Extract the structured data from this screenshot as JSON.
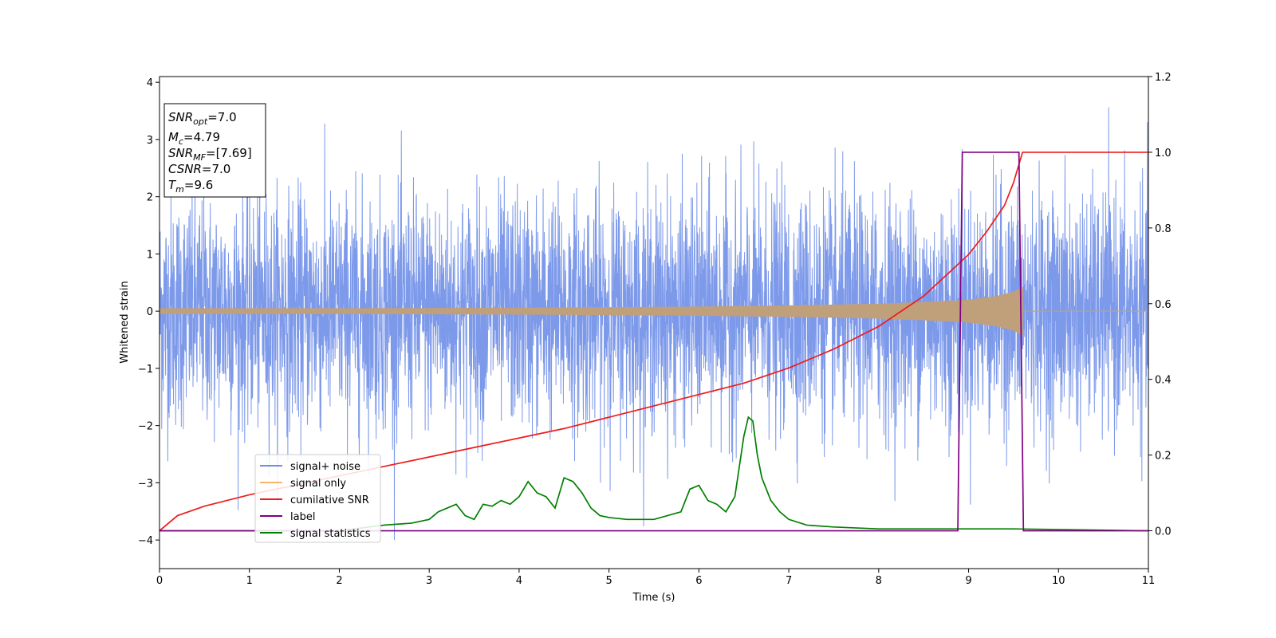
{
  "chart_data": {
    "type": "line",
    "xlabel": "Time (s)",
    "ylabel": "Whitened strain",
    "xlim": [
      0,
      11
    ],
    "ylim_left": [
      -4.5,
      4.1
    ],
    "ylim_right": [
      -0.1,
      1.2
    ],
    "x_ticks": [
      "0",
      "1",
      "2",
      "3",
      "4",
      "5",
      "6",
      "7",
      "8",
      "9",
      "10",
      "11"
    ],
    "y_ticks_left": [
      "4",
      "3",
      "2",
      "1",
      "0",
      "−1",
      "−2",
      "−3",
      "−4"
    ],
    "y_ticks_right": [
      "1.2",
      "1.0",
      "0.8",
      "0.6",
      "0.4",
      "0.2",
      "0.0"
    ],
    "grid": false,
    "legend_position": "lower-left",
    "info_box": {
      "snr_opt": "=7.0",
      "mc": "=4.79",
      "snr_mf": "=[7.69]",
      "csnr": "=7.0",
      "tm": "=9.6"
    },
    "series": [
      {
        "name": "signal+ noise",
        "axis": "left",
        "color": "#6f8ee8",
        "note_values": "Gaussian noise, std about 1, range -4.0 to 3.7"
      },
      {
        "name": "signal only",
        "axis": "left",
        "color": "#f5b66c",
        "envelope": {
          "x": [
            0,
            2,
            4,
            6,
            7,
            8,
            8.5,
            9,
            9.3,
            9.5,
            9.6
          ],
          "amp": [
            0.05,
            0.05,
            0.06,
            0.08,
            0.1,
            0.13,
            0.16,
            0.2,
            0.26,
            0.34,
            0.42
          ]
        }
      },
      {
        "name": "cumilative SNR",
        "axis": "right",
        "color": "#ee1c1c",
        "x": [
          0,
          0.2,
          0.5,
          1,
          1.5,
          2,
          2.5,
          3,
          3.5,
          4,
          4.5,
          5,
          5.5,
          6,
          6.5,
          7,
          7.5,
          8,
          8.5,
          9,
          9.2,
          9.4,
          9.5,
          9.6,
          11
        ],
        "values": [
          0.0,
          0.04,
          0.065,
          0.095,
          0.12,
          0.145,
          0.17,
          0.195,
          0.22,
          0.245,
          0.27,
          0.3,
          0.33,
          0.36,
          0.39,
          0.43,
          0.48,
          0.54,
          0.62,
          0.73,
          0.79,
          0.86,
          0.92,
          1.0,
          1.0
        ]
      },
      {
        "name": "label",
        "axis": "right",
        "color": "#800080",
        "x": [
          0,
          8.88,
          8.93,
          9.56,
          9.61,
          11
        ],
        "values": [
          0,
          0,
          1,
          1,
          0,
          0
        ]
      },
      {
        "name": "signal statistics",
        "axis": "right",
        "color": "#008000",
        "x": [
          0,
          2,
          2.5,
          2.8,
          3,
          3.1,
          3.2,
          3.3,
          3.4,
          3.5,
          3.6,
          3.7,
          3.8,
          3.9,
          4.0,
          4.1,
          4.2,
          4.3,
          4.4,
          4.5,
          4.6,
          4.7,
          4.8,
          4.9,
          5.0,
          5.2,
          5.5,
          5.8,
          5.9,
          6.0,
          6.1,
          6.2,
          6.3,
          6.4,
          6.5,
          6.55,
          6.6,
          6.65,
          6.7,
          6.8,
          6.9,
          7.0,
          7.2,
          7.5,
          8.0,
          9.0,
          9.5,
          11
        ],
        "values": [
          0.0,
          0.0,
          0.015,
          0.02,
          0.03,
          0.05,
          0.06,
          0.07,
          0.04,
          0.03,
          0.07,
          0.065,
          0.08,
          0.07,
          0.09,
          0.13,
          0.1,
          0.09,
          0.06,
          0.14,
          0.13,
          0.1,
          0.06,
          0.04,
          0.035,
          0.03,
          0.03,
          0.05,
          0.11,
          0.12,
          0.08,
          0.07,
          0.05,
          0.09,
          0.25,
          0.3,
          0.29,
          0.2,
          0.14,
          0.08,
          0.05,
          0.03,
          0.015,
          0.01,
          0.005,
          0.005,
          0.005,
          0.0
        ]
      }
    ]
  }
}
